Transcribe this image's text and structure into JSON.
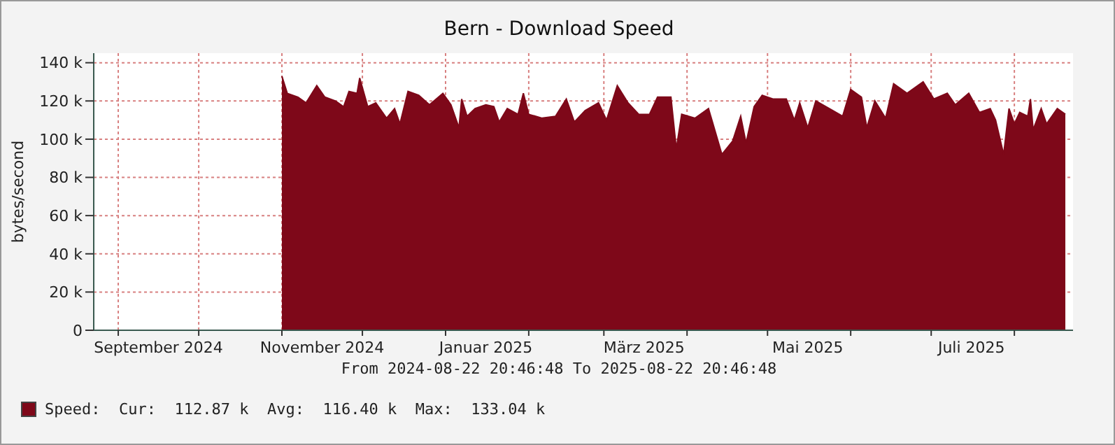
{
  "chart_data": {
    "type": "area",
    "title": "Bern - Download Speed",
    "ylabel": "bytes/second",
    "x": [
      "2024-11-01",
      "2024-11-03",
      "2024-11-07",
      "2024-11-10",
      "2024-11-14",
      "2024-11-17",
      "2024-11-21",
      "2024-11-24",
      "2024-11-26",
      "2024-11-29",
      "2024-11-30",
      "2024-12-03",
      "2024-12-06",
      "2024-12-10",
      "2024-12-13",
      "2024-12-15",
      "2024-12-18",
      "2024-12-22",
      "2024-12-26",
      "2024-12-31",
      "2025-01-03",
      "2025-01-06",
      "2025-01-07",
      "2025-01-09",
      "2025-01-12",
      "2025-01-16",
      "2025-01-19",
      "2025-01-21",
      "2025-01-24",
      "2025-01-28",
      "2025-01-30",
      "2025-02-01",
      "2025-02-06",
      "2025-02-11",
      "2025-02-15",
      "2025-02-18",
      "2025-02-22",
      "2025-02-27",
      "2025-03-02",
      "2025-03-06",
      "2025-03-10",
      "2025-03-14",
      "2025-03-18",
      "2025-03-21",
      "2025-03-26",
      "2025-03-28",
      "2025-03-30",
      "2025-04-04",
      "2025-04-09",
      "2025-04-14",
      "2025-04-18",
      "2025-04-21",
      "2025-04-23",
      "2025-04-26",
      "2025-04-29",
      "2025-05-03",
      "2025-05-08",
      "2025-05-11",
      "2025-05-13",
      "2025-05-16",
      "2025-05-19",
      "2025-05-24",
      "2025-05-29",
      "2025-06-01",
      "2025-06-05",
      "2025-06-07",
      "2025-06-10",
      "2025-06-14",
      "2025-06-17",
      "2025-06-22",
      "2025-06-28",
      "2025-07-02",
      "2025-07-07",
      "2025-07-10",
      "2025-07-15",
      "2025-07-19",
      "2025-07-23",
      "2025-07-25",
      "2025-07-28",
      "2025-07-30",
      "2025-08-01",
      "2025-08-03",
      "2025-08-06",
      "2025-08-07",
      "2025-08-08",
      "2025-08-11",
      "2025-08-13",
      "2025-08-17",
      "2025-08-20"
    ],
    "series": [
      {
        "name": "Speed:",
        "color": "#7e0819",
        "values": [
          133000,
          124000,
          122000,
          119000,
          128000,
          122000,
          120000,
          117000,
          125000,
          124000,
          132000,
          117000,
          119000,
          111000,
          116000,
          108000,
          125000,
          123000,
          118000,
          124000,
          118000,
          106000,
          121000,
          112000,
          116000,
          118000,
          117000,
          109000,
          116000,
          113000,
          124000,
          113000,
          111000,
          112000,
          121000,
          109000,
          115000,
          119000,
          110000,
          128000,
          119000,
          113000,
          113000,
          122000,
          122000,
          95000,
          113000,
          111000,
          116000,
          92000,
          99000,
          112000,
          98000,
          117000,
          123000,
          121000,
          121000,
          110000,
          119000,
          106000,
          120000,
          116000,
          112000,
          126000,
          122000,
          106000,
          120000,
          111000,
          129000,
          124000,
          130000,
          121000,
          124000,
          118000,
          124000,
          114000,
          116000,
          110000,
          92000,
          116000,
          108000,
          114000,
          112000,
          121000,
          105000,
          116000,
          108000,
          116000,
          113000
        ]
      }
    ],
    "xlim": [
      "2024-08-22T20:46",
      "2025-08-22T20:46"
    ],
    "xticks": [
      {
        "value": "2024-09-01",
        "label": null
      },
      {
        "value": "2024-09-16",
        "label": "September 2024"
      },
      {
        "value": "2024-10-01",
        "label": null
      },
      {
        "value": "2024-11-01",
        "label": null
      },
      {
        "value": "2024-11-16",
        "label": "November 2024"
      },
      {
        "value": "2024-12-01",
        "label": null
      },
      {
        "value": "2025-01-01",
        "label": null
      },
      {
        "value": "2025-01-16",
        "label": "Januar 2025"
      },
      {
        "value": "2025-02-01",
        "label": null
      },
      {
        "value": "2025-03-01",
        "label": null
      },
      {
        "value": "2025-03-16",
        "label": "März 2025"
      },
      {
        "value": "2025-04-01",
        "label": null
      },
      {
        "value": "2025-05-01",
        "label": null
      },
      {
        "value": "2025-05-16",
        "label": "Mai 2025"
      },
      {
        "value": "2025-06-01",
        "label": null
      },
      {
        "value": "2025-07-01",
        "label": null
      },
      {
        "value": "2025-07-16",
        "label": "Juli 2025"
      },
      {
        "value": "2025-08-01",
        "label": null
      }
    ],
    "ylim": [
      0,
      145000
    ],
    "yticks": [
      0,
      {
        "value": 20000,
        "label": "20 k"
      },
      {
        "value": 40000,
        "label": "40 k"
      },
      {
        "value": 60000,
        "label": "60 k"
      },
      {
        "value": 80000,
        "label": "80 k"
      },
      {
        "value": 100000,
        "label": "100 k"
      },
      {
        "value": 120000,
        "label": "120 k"
      },
      {
        "value": 140000,
        "label": "140 k"
      }
    ],
    "grid": true,
    "legend": "bottom left",
    "annotations": [
      "From 2024-08-22 20:46:48 To 2025-08-22 20:46:48",
      "Cur:  112.87 k  Avg:  116.40 k  Max:  133.04 k"
    ]
  }
}
